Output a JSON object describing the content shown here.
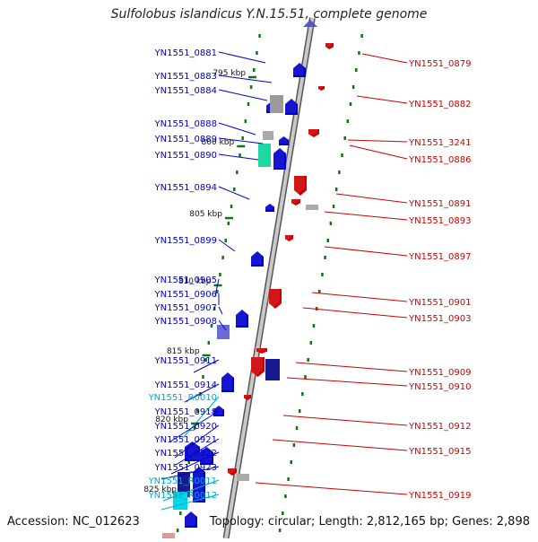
{
  "title": "Sulfolobus islandicus Y.N.15.51, complete genome",
  "accession": "Accession: NC_012623",
  "topology": "Topology: circular; Length: 2,812,165 bp; Genes: 2,898",
  "colors": {
    "backbone": "#9a9a9a",
    "tick": "#0a7a0a",
    "forward": "#0000cc",
    "reverse": "#cc0000",
    "rna": "#00aacc"
  },
  "kbp_markers": [
    "795 kbp",
    "800 kbp",
    "805 kbp",
    "810 kbp",
    "815 kbp",
    "820 kbp",
    "825 kbp"
  ],
  "left_labels": [
    {
      "text": "YN1551_0881",
      "type": "protein"
    },
    {
      "text": "YN1551_0883",
      "type": "protein"
    },
    {
      "text": "YN1551_0884",
      "type": "protein"
    },
    {
      "text": "YN1551_0888",
      "type": "protein"
    },
    {
      "text": "YN1551_0889",
      "type": "protein"
    },
    {
      "text": "YN1551_0890",
      "type": "protein"
    },
    {
      "text": "YN1551_0894",
      "type": "protein"
    },
    {
      "text": "YN1551_0899",
      "type": "protein"
    },
    {
      "text": "YN1551_0905",
      "type": "protein"
    },
    {
      "text": "YN1551_0906",
      "type": "protein"
    },
    {
      "text": "YN1551_0907",
      "type": "protein"
    },
    {
      "text": "YN1551_0908",
      "type": "protein"
    },
    {
      "text": "YN1551_0911",
      "type": "protein"
    },
    {
      "text": "YN1551_0914",
      "type": "protein"
    },
    {
      "text": "YN1551_R0010",
      "type": "rna"
    },
    {
      "text": "YN1551_0918",
      "type": "protein"
    },
    {
      "text": "YN1551_0920",
      "type": "protein"
    },
    {
      "text": "YN1551_0921",
      "type": "protein"
    },
    {
      "text": "YN1551_0922",
      "type": "protein"
    },
    {
      "text": "YN1551_0923",
      "type": "protein"
    },
    {
      "text": "YN1551_R0011",
      "type": "rna"
    },
    {
      "text": "YN1551_R0012",
      "type": "rna"
    }
  ],
  "right_labels": [
    {
      "text": "YN1551_0879"
    },
    {
      "text": "YN1551_0882"
    },
    {
      "text": "YN1551_3241"
    },
    {
      "text": "YN1551_0886"
    },
    {
      "text": "YN1551_0891"
    },
    {
      "text": "YN1551_0893"
    },
    {
      "text": "YN1551_0897"
    },
    {
      "text": "YN1551_0901"
    },
    {
      "text": "YN1551_0903"
    },
    {
      "text": "YN1551_0909"
    },
    {
      "text": "YN1551_0910"
    },
    {
      "text": "YN1551_0912"
    },
    {
      "text": "YN1551_0915"
    },
    {
      "text": "YN1551_0919"
    }
  ]
}
